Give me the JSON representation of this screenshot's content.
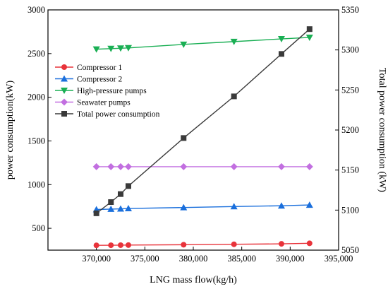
{
  "chart_data": {
    "type": "line",
    "xlabel": "LNG mass flow(kg/h)",
    "ylabel_left": "power consumption(kW)",
    "ylabel_right": "Total power consumption (kW)",
    "xlim": [
      365000,
      395000
    ],
    "ylim_left": [
      250,
      3000
    ],
    "ylim_right": [
      5050,
      5350
    ],
    "x_ticks": [
      370000,
      375000,
      380000,
      385000,
      390000,
      395000
    ],
    "x_tick_labels": [
      "370,000",
      "375,000",
      "380,000",
      "385,000",
      "390,000",
      "395,000"
    ],
    "y_left_ticks": [
      500,
      1000,
      1500,
      2000,
      2500,
      3000
    ],
    "y_left_tick_labels": [
      "500",
      "1000",
      "1500",
      "2000",
      "2500",
      "3000"
    ],
    "y_right_ticks": [
      5050,
      5100,
      5150,
      5200,
      5250,
      5300,
      5350
    ],
    "y_right_tick_labels": [
      "5050",
      "5100",
      "5150",
      "5200",
      "5250",
      "5300",
      "5350"
    ],
    "grid": false,
    "legend_position": "top-left",
    "x": [
      370000,
      371500,
      372500,
      373300,
      379000,
      384200,
      389100,
      392000
    ],
    "series": [
      {
        "name": "Compressor 1",
        "axis": "left",
        "marker": "circle",
        "color": "#e8333a",
        "values": [
          305,
          306,
          307,
          308,
          312,
          317,
          322,
          328
        ]
      },
      {
        "name": "Compressor 2",
        "axis": "left",
        "marker": "triangle-up",
        "color": "#1a6fdc",
        "values": [
          715,
          720,
          723,
          727,
          738,
          749,
          758,
          767
        ]
      },
      {
        "name": "High-pressure pumps",
        "axis": "left",
        "marker": "triangle-down",
        "color": "#1aaf54",
        "values": [
          2550,
          2557,
          2561,
          2565,
          2605,
          2637,
          2668,
          2685
        ]
      },
      {
        "name": "Seawater pumps",
        "axis": "left",
        "marker": "diamond",
        "color": "#c26fe0",
        "values": [
          1205,
          1205,
          1205,
          1205,
          1205,
          1205,
          1205,
          1205
        ]
      },
      {
        "name": "Total power consumption",
        "axis": "right",
        "marker": "square",
        "color": "#3a3a3a",
        "values": [
          5096,
          5110,
          5120,
          5130,
          5190,
          5242,
          5295,
          5326
        ]
      }
    ]
  }
}
